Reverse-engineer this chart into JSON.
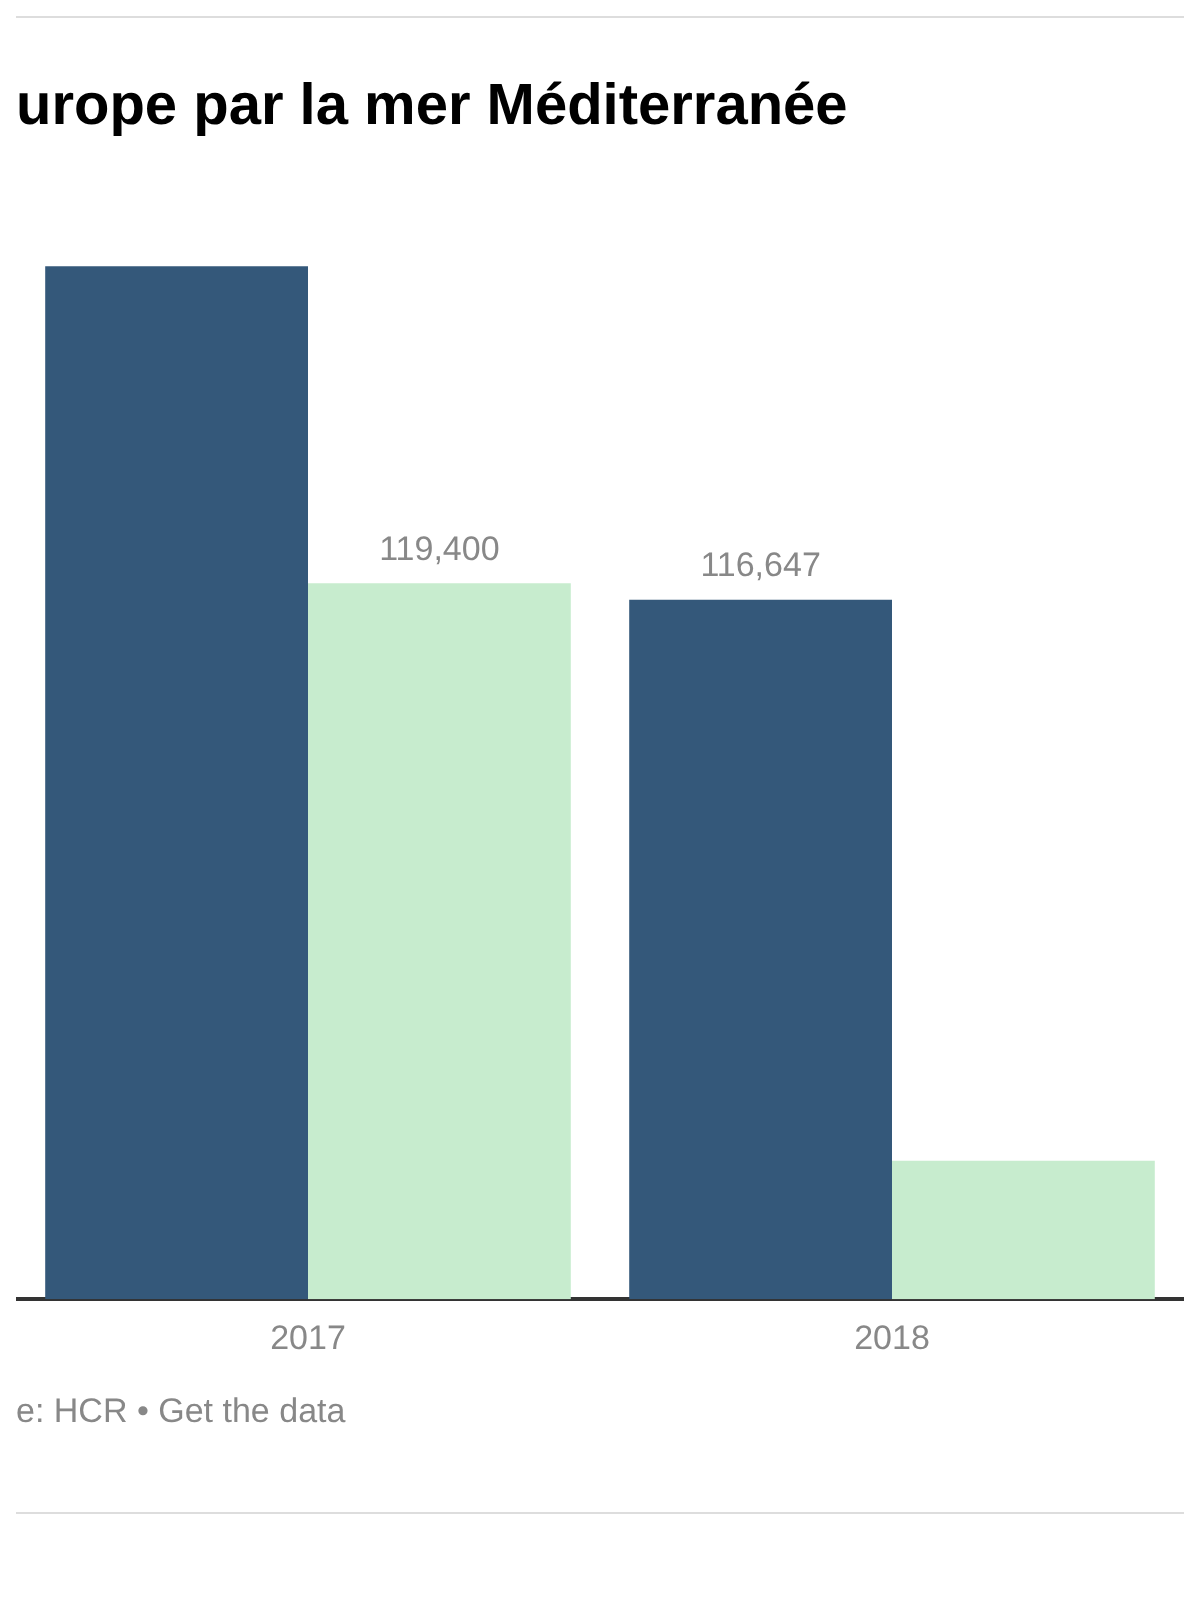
{
  "chart_data": {
    "type": "bar",
    "title": "urope par la mer Méditerranée",
    "categories": [
      "2017",
      "2018"
    ],
    "series": [
      {
        "color": "#34587a",
        "values": [
          172300,
          116647
        ],
        "value_labels": [
          null,
          "116,647"
        ]
      },
      {
        "color": "#c7ecce",
        "values": [
          119400,
          23100
        ],
        "value_labels": [
          "119,400",
          null
        ]
      }
    ],
    "grid": false,
    "legend": false,
    "tick_labels": "x",
    "annotations": [
      "e: HCR • Get the data"
    ]
  }
}
